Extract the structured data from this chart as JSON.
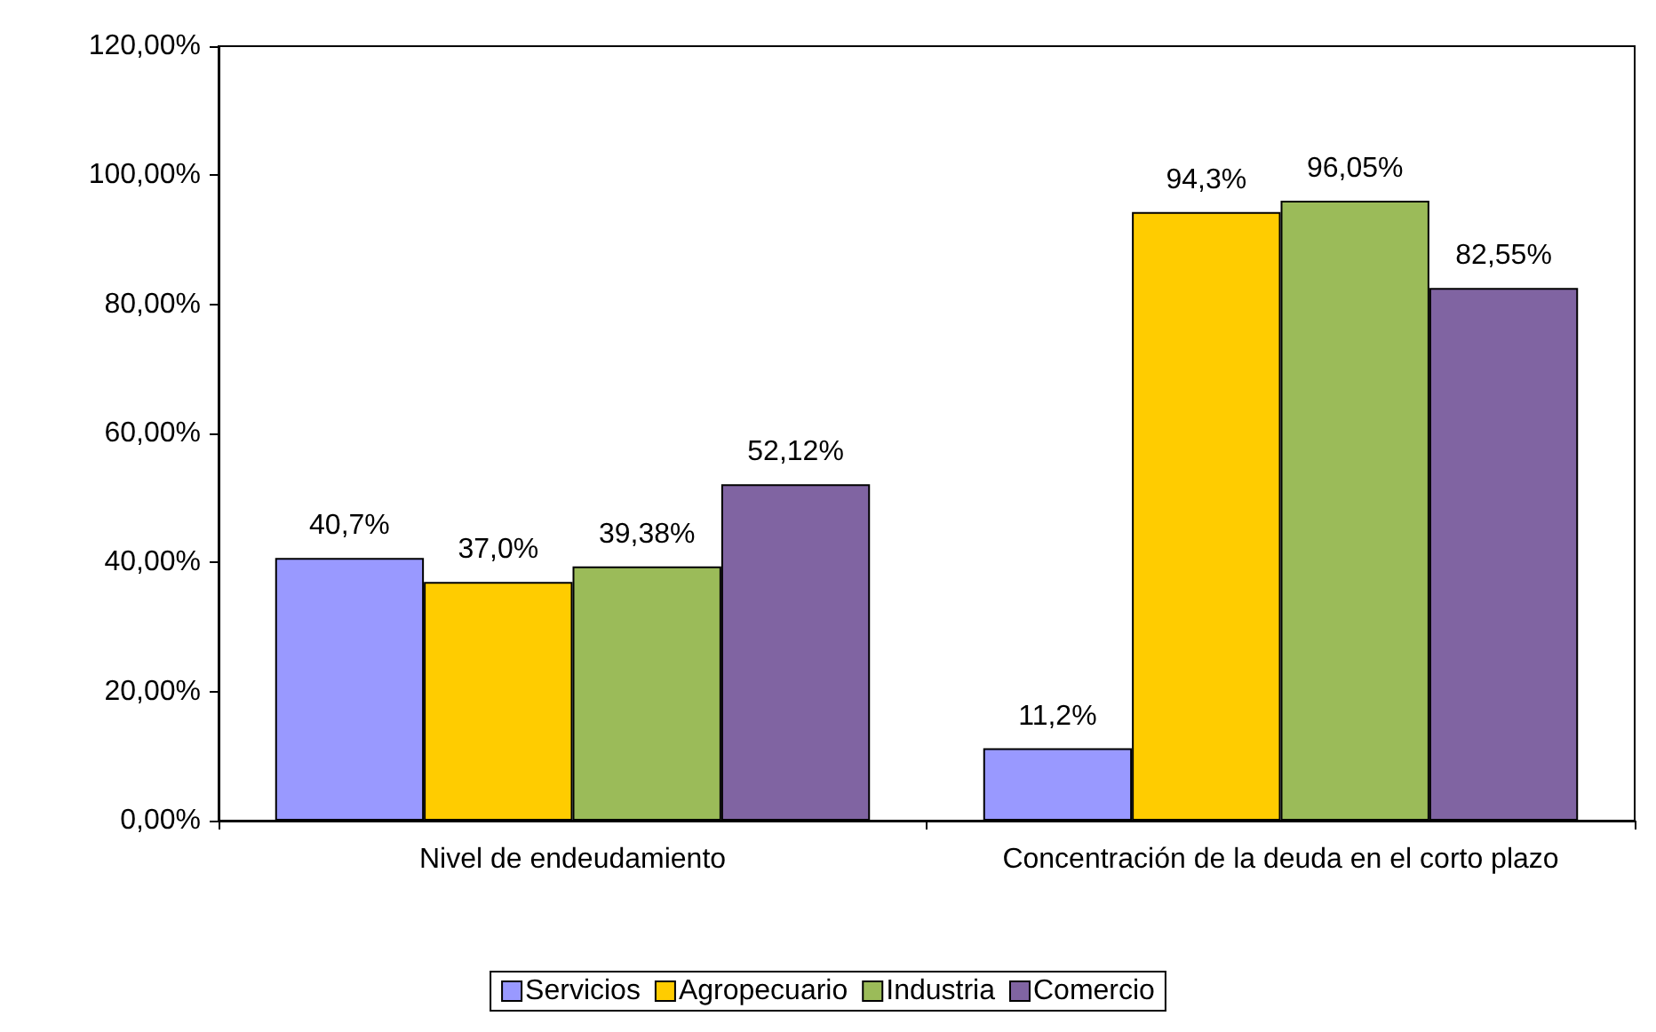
{
  "chart_data": {
    "type": "bar",
    "categories": [
      "Nivel de endeudamiento",
      "Concentración de la deuda en el corto plazo"
    ],
    "series": [
      {
        "name": "Servicios",
        "color": "#9999ff",
        "values": [
          40.7,
          11.2
        ],
        "value_labels": [
          "40,7%",
          "11,2%"
        ]
      },
      {
        "name": "Agropecuario",
        "color": "#ffcc00",
        "values": [
          37.0,
          94.3
        ],
        "value_labels": [
          "37,0%",
          "94,3%"
        ]
      },
      {
        "name": "Industria",
        "color": "#9bbb59",
        "values": [
          39.38,
          96.05
        ],
        "value_labels": [
          "39,38%",
          "96,05%"
        ]
      },
      {
        "name": "Comercio",
        "color": "#8064a2",
        "values": [
          52.12,
          82.55
        ],
        "value_labels": [
          "52,12%",
          "82,55%"
        ]
      }
    ],
    "ylim": [
      0,
      120
    ],
    "yticks": [
      {
        "value": 0,
        "label": "0,00%"
      },
      {
        "value": 20,
        "label": "20,00%"
      },
      {
        "value": 40,
        "label": "40,00%"
      },
      {
        "value": 60,
        "label": "60,00%"
      },
      {
        "value": 80,
        "label": "80,00%"
      },
      {
        "value": 100,
        "label": "100,00%"
      },
      {
        "value": 120,
        "label": "120,00%"
      }
    ],
    "legend": "bottom"
  }
}
